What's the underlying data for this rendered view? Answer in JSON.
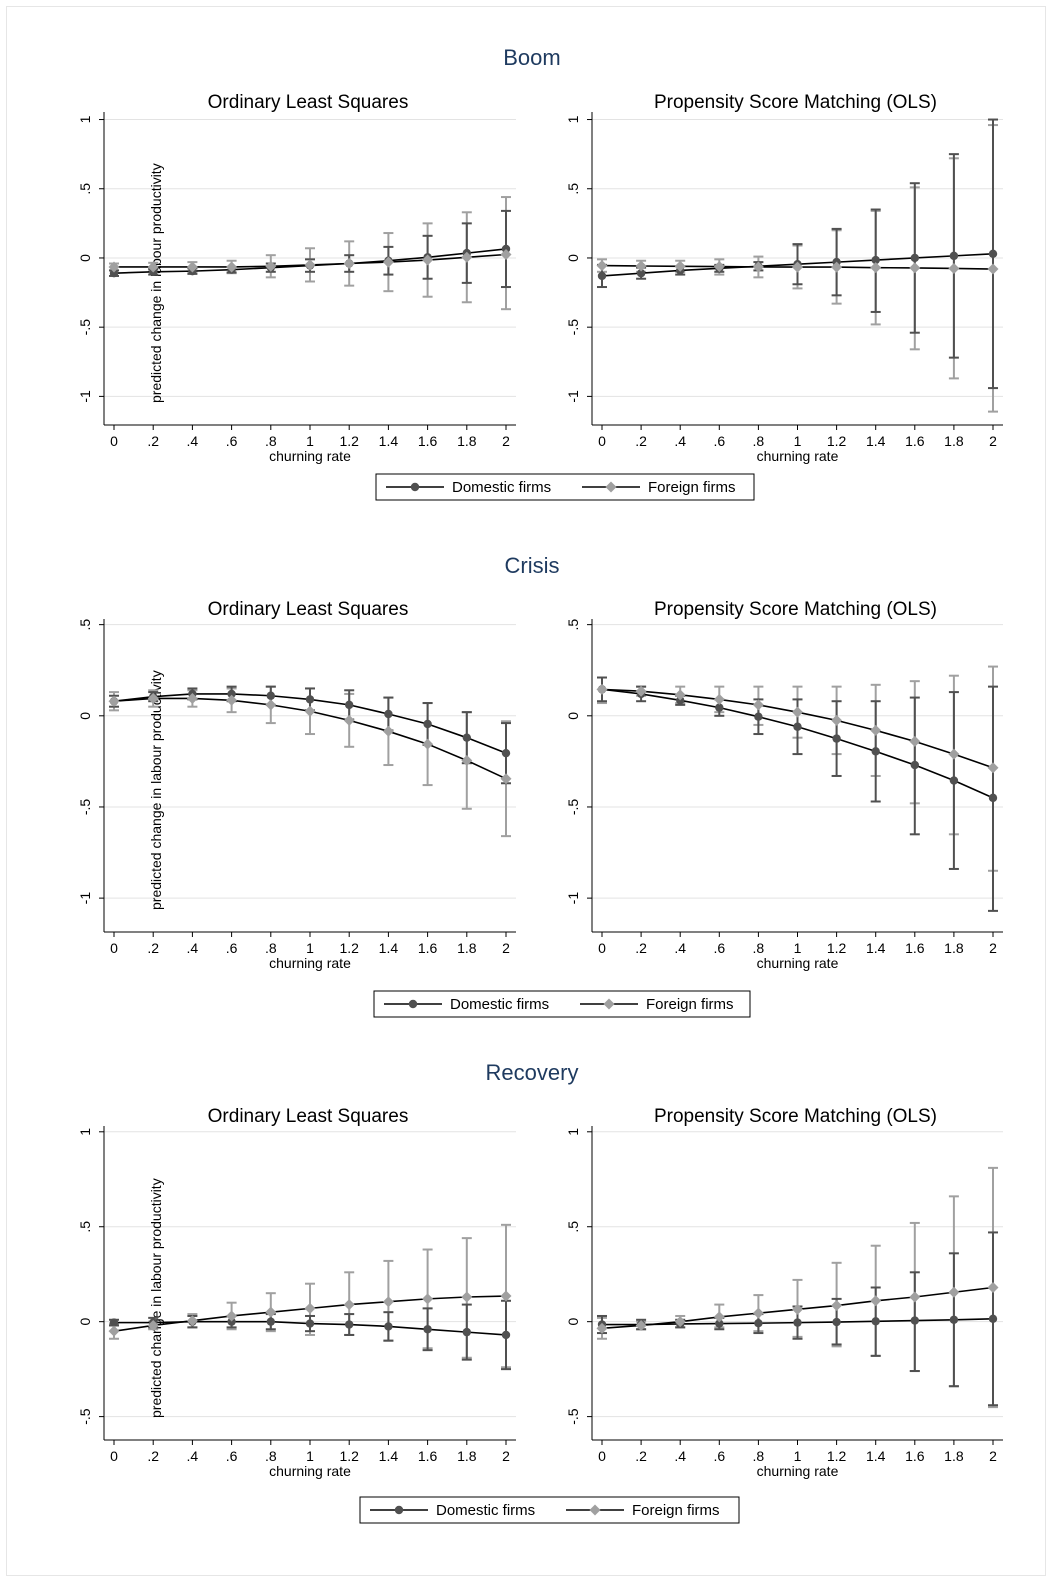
{
  "chart_data": [
    {
      "type": "line",
      "panel": "Boom",
      "title": "Ordinary Least Squares",
      "xlabel": "churning rate",
      "ylabel": "predicted change in labour productivity",
      "x": [
        0,
        0.2,
        0.4,
        0.6,
        0.8,
        1,
        1.2,
        1.4,
        1.6,
        1.8,
        2
      ],
      "xtick_labels": [
        "0",
        ".2",
        ".4",
        ".6",
        ".8",
        "1",
        "1.2",
        "1.4",
        "1.6",
        "1.8",
        "2"
      ],
      "ylim": [
        -1.12,
        1.04
      ],
      "yticks": [
        -1,
        -0.5,
        0,
        0.5,
        1
      ],
      "ytick_labels": [
        "-1",
        "-.5",
        "0",
        ".5",
        "1"
      ],
      "series": [
        {
          "name": "Domestic firms",
          "color": "#505050",
          "marker": "circle",
          "values": [
            -0.11,
            -0.1,
            -0.095,
            -0.085,
            -0.07,
            -0.055,
            -0.04,
            -0.02,
            0.005,
            0.035,
            0.065
          ],
          "ci_low": [
            -0.13,
            -0.12,
            -0.115,
            -0.105,
            -0.1,
            -0.1,
            -0.1,
            -0.12,
            -0.15,
            -0.18,
            -0.21
          ],
          "ci_high": [
            -0.09,
            -0.08,
            -0.075,
            -0.065,
            -0.04,
            -0.01,
            0.02,
            0.08,
            0.16,
            0.25,
            0.34
          ]
        },
        {
          "name": "Foreign firms",
          "color": "#a0a0a0",
          "marker": "diamond",
          "values": [
            -0.065,
            -0.065,
            -0.065,
            -0.065,
            -0.06,
            -0.05,
            -0.04,
            -0.03,
            -0.015,
            0.005,
            0.025
          ],
          "ci_low": [
            -0.09,
            -0.095,
            -0.1,
            -0.11,
            -0.14,
            -0.17,
            -0.2,
            -0.24,
            -0.28,
            -0.32,
            -0.37
          ],
          "ci_high": [
            -0.04,
            -0.035,
            -0.03,
            -0.02,
            0.02,
            0.07,
            0.12,
            0.18,
            0.25,
            0.33,
            0.44
          ]
        }
      ],
      "legend": "bottom"
    },
    {
      "type": "line",
      "panel": "Boom",
      "title": "Propensity Score Matching (OLS)",
      "xlabel": "churning rate",
      "ylabel": "",
      "x": [
        0,
        0.2,
        0.4,
        0.6,
        0.8,
        1,
        1.2,
        1.4,
        1.6,
        1.8,
        2
      ],
      "xtick_labels": [
        "0",
        ".2",
        ".4",
        ".6",
        ".8",
        "1",
        "1.2",
        "1.4",
        "1.6",
        "1.8",
        "2"
      ],
      "ylim": [
        -1.12,
        1.04
      ],
      "yticks": [
        -1,
        -0.5,
        0,
        0.5,
        1
      ],
      "ytick_labels": [
        "-1",
        "-.5",
        "0",
        ".5",
        "1"
      ],
      "series": [
        {
          "name": "Domestic firms",
          "color": "#505050",
          "marker": "circle",
          "values": [
            -0.13,
            -0.11,
            -0.09,
            -0.075,
            -0.06,
            -0.045,
            -0.03,
            -0.015,
            0.0,
            0.015,
            0.03
          ],
          "ci_low": [
            -0.21,
            -0.15,
            -0.12,
            -0.1,
            -0.09,
            -0.19,
            -0.27,
            -0.39,
            -0.54,
            -0.72,
            -0.94
          ],
          "ci_high": [
            -0.05,
            -0.07,
            -0.06,
            -0.05,
            -0.03,
            0.1,
            0.21,
            0.35,
            0.54,
            0.75,
            1.0
          ]
        },
        {
          "name": "Foreign firms",
          "color": "#a0a0a0",
          "marker": "diamond",
          "values": [
            -0.055,
            -0.058,
            -0.06,
            -0.062,
            -0.065,
            -0.066,
            -0.066,
            -0.07,
            -0.072,
            -0.076,
            -0.08
          ],
          "ci_low": [
            -0.1,
            -0.1,
            -0.1,
            -0.12,
            -0.14,
            -0.22,
            -0.33,
            -0.48,
            -0.66,
            -0.87,
            -1.11
          ],
          "ci_high": [
            -0.01,
            -0.02,
            -0.02,
            -0.01,
            0.01,
            0.09,
            0.2,
            0.34,
            0.51,
            0.72,
            0.96
          ]
        }
      ],
      "legend": "bottom"
    },
    {
      "type": "line",
      "panel": "Crisis",
      "title": "Ordinary Least Squares",
      "xlabel": "churning rate",
      "ylabel": "predicted change in labour productivity",
      "x": [
        0,
        0.2,
        0.4,
        0.6,
        0.8,
        1,
        1.2,
        1.4,
        1.6,
        1.8,
        2
      ],
      "xtick_labels": [
        "0",
        ".2",
        ".4",
        ".6",
        ".8",
        "1",
        "1.2",
        "1.4",
        "1.6",
        "1.8",
        "2"
      ],
      "ylim": [
        -1.12,
        0.52
      ],
      "yticks": [
        -1,
        -0.5,
        0,
        0.5
      ],
      "ytick_labels": [
        "-1",
        "-.5",
        "0",
        ".5"
      ],
      "series": [
        {
          "name": "Domestic firms",
          "color": "#505050",
          "marker": "circle",
          "values": [
            0.08,
            0.105,
            0.12,
            0.12,
            0.11,
            0.09,
            0.06,
            0.01,
            -0.045,
            -0.12,
            -0.205
          ],
          "ci_low": [
            0.05,
            0.08,
            0.09,
            0.08,
            0.06,
            0.03,
            -0.02,
            -0.08,
            -0.16,
            -0.26,
            -0.37
          ],
          "ci_high": [
            0.11,
            0.13,
            0.15,
            0.16,
            0.16,
            0.15,
            0.14,
            0.1,
            0.07,
            0.02,
            -0.04
          ]
        },
        {
          "name": "Foreign firms",
          "color": "#a0a0a0",
          "marker": "diamond",
          "values": [
            0.08,
            0.095,
            0.095,
            0.085,
            0.06,
            0.025,
            -0.025,
            -0.085,
            -0.155,
            -0.245,
            -0.345
          ],
          "ci_low": [
            0.03,
            0.05,
            0.05,
            0.02,
            -0.04,
            -0.1,
            -0.17,
            -0.27,
            -0.38,
            -0.51,
            -0.66
          ],
          "ci_high": [
            0.13,
            0.14,
            0.14,
            0.15,
            0.16,
            0.15,
            0.12,
            0.1,
            0.07,
            0.02,
            -0.03
          ]
        }
      ],
      "legend": "bottom"
    },
    {
      "type": "line",
      "panel": "Crisis",
      "title": "Propensity Score Matching (OLS)",
      "xlabel": "churning rate",
      "ylabel": "",
      "x": [
        0,
        0.2,
        0.4,
        0.6,
        0.8,
        1,
        1.2,
        1.4,
        1.6,
        1.8,
        2
      ],
      "xtick_labels": [
        "0",
        ".2",
        ".4",
        ".6",
        ".8",
        "1",
        "1.2",
        "1.4",
        "1.6",
        "1.8",
        "2"
      ],
      "ylim": [
        -1.12,
        0.52
      ],
      "yticks": [
        -1,
        -0.5,
        0,
        0.5
      ],
      "ytick_labels": [
        "-1",
        "-.5",
        "0",
        ".5"
      ],
      "series": [
        {
          "name": "Domestic firms",
          "color": "#505050",
          "marker": "circle",
          "values": [
            0.145,
            0.12,
            0.085,
            0.045,
            -0.005,
            -0.06,
            -0.125,
            -0.195,
            -0.27,
            -0.355,
            -0.45
          ],
          "ci_low": [
            0.08,
            0.08,
            0.06,
            0.0,
            -0.1,
            -0.21,
            -0.33,
            -0.47,
            -0.65,
            -0.84,
            -1.07
          ],
          "ci_high": [
            0.21,
            0.16,
            0.11,
            0.09,
            0.09,
            0.09,
            0.08,
            0.08,
            0.1,
            0.13,
            0.16
          ]
        },
        {
          "name": "Foreign firms",
          "color": "#a0a0a0",
          "marker": "diamond",
          "values": [
            0.145,
            0.135,
            0.115,
            0.09,
            0.06,
            0.02,
            -0.025,
            -0.08,
            -0.14,
            -0.21,
            -0.285
          ],
          "ci_low": [
            0.07,
            0.11,
            0.07,
            0.02,
            -0.05,
            -0.12,
            -0.21,
            -0.33,
            -0.48,
            -0.65,
            -0.85
          ],
          "ci_high": [
            0.21,
            0.16,
            0.16,
            0.16,
            0.16,
            0.16,
            0.16,
            0.17,
            0.19,
            0.22,
            0.27
          ]
        }
      ],
      "legend": "bottom"
    },
    {
      "type": "line",
      "panel": "Recovery",
      "title": "Ordinary Least Squares",
      "xlabel": "churning rate",
      "ylabel": "predicted change in labour productivity",
      "x": [
        0,
        0.2,
        0.4,
        0.6,
        0.8,
        1,
        1.2,
        1.4,
        1.6,
        1.8,
        2
      ],
      "xtick_labels": [
        "0",
        ".2",
        ".4",
        ".6",
        ".8",
        "1",
        "1.2",
        "1.4",
        "1.6",
        "1.8",
        "2"
      ],
      "ylim": [
        -0.56,
        1.02
      ],
      "yticks": [
        -0.5,
        0,
        0.5,
        1
      ],
      "ytick_labels": [
        "-.5",
        "0",
        ".5",
        "1"
      ],
      "series": [
        {
          "name": "Domestic firms",
          "color": "#505050",
          "marker": "circle",
          "values": [
            -0.005,
            -0.005,
            0.0,
            0.0,
            0.0,
            -0.01,
            -0.015,
            -0.025,
            -0.04,
            -0.055,
            -0.07
          ],
          "ci_low": [
            -0.02,
            -0.03,
            -0.03,
            -0.03,
            -0.04,
            -0.05,
            -0.07,
            -0.1,
            -0.15,
            -0.2,
            -0.25
          ],
          "ci_high": [
            0.01,
            0.02,
            0.03,
            0.03,
            0.04,
            0.03,
            0.04,
            0.05,
            0.07,
            0.09,
            0.11
          ]
        },
        {
          "name": "Foreign firms",
          "color": "#a0a0a0",
          "marker": "diamond",
          "values": [
            -0.05,
            -0.02,
            0.005,
            0.03,
            0.05,
            0.07,
            0.09,
            0.105,
            0.12,
            0.13,
            0.135
          ],
          "ci_low": [
            -0.09,
            -0.04,
            -0.03,
            -0.04,
            -0.05,
            -0.07,
            -0.07,
            -0.1,
            -0.14,
            -0.19,
            -0.24
          ],
          "ci_high": [
            -0.01,
            0.0,
            0.04,
            0.1,
            0.15,
            0.2,
            0.26,
            0.32,
            0.38,
            0.44,
            0.51
          ]
        }
      ],
      "legend": "bottom"
    },
    {
      "type": "line",
      "panel": "Recovery",
      "title": "Propensity Score Matching (OLS)",
      "xlabel": "churning rate",
      "ylabel": "",
      "x": [
        0,
        0.2,
        0.4,
        0.6,
        0.8,
        1,
        1.2,
        1.4,
        1.6,
        1.8,
        2
      ],
      "xtick_labels": [
        "0",
        ".2",
        ".4",
        ".6",
        ".8",
        "1",
        "1.2",
        "1.4",
        "1.6",
        "1.8",
        "2"
      ],
      "ylim": [
        -0.56,
        1.02
      ],
      "yticks": [
        -0.5,
        0,
        0.5,
        1
      ],
      "ytick_labels": [
        "-.5",
        "0",
        ".5",
        "1"
      ],
      "series": [
        {
          "name": "Domestic firms",
          "color": "#505050",
          "marker": "circle",
          "values": [
            -0.015,
            -0.015,
            -0.012,
            -0.01,
            -0.008,
            -0.005,
            -0.002,
            0.002,
            0.006,
            0.01,
            0.015
          ],
          "ci_low": [
            -0.06,
            -0.04,
            -0.03,
            -0.04,
            -0.06,
            -0.09,
            -0.12,
            -0.18,
            -0.26,
            -0.34,
            -0.44
          ],
          "ci_high": [
            0.03,
            0.01,
            0.01,
            0.02,
            0.04,
            0.08,
            0.12,
            0.18,
            0.26,
            0.36,
            0.47
          ]
        },
        {
          "name": "Foreign firms",
          "color": "#a0a0a0",
          "marker": "diamond",
          "values": [
            -0.035,
            -0.02,
            0.0,
            0.025,
            0.045,
            0.065,
            0.085,
            0.11,
            0.13,
            0.155,
            0.18
          ],
          "ci_low": [
            -0.09,
            -0.04,
            -0.03,
            -0.03,
            -0.05,
            -0.08,
            -0.13,
            -0.18,
            -0.26,
            -0.34,
            -0.45
          ],
          "ci_high": [
            0.02,
            0.0,
            0.03,
            0.09,
            0.14,
            0.22,
            0.31,
            0.4,
            0.52,
            0.66,
            0.81
          ]
        }
      ],
      "legend": "bottom"
    }
  ],
  "panels": [
    {
      "title": "Boom",
      "legend": [
        "Domestic firms",
        "Foreign firms"
      ]
    },
    {
      "title": "Crisis",
      "legend": [
        "Domestic firms",
        "Foreign firms"
      ]
    },
    {
      "title": "Recovery",
      "legend": [
        "Domestic firms",
        "Foreign firms"
      ]
    }
  ],
  "colors": {
    "domestic": "#505050",
    "foreign": "#a0a0a0",
    "panel_title": "#1e3a5f",
    "grid": "#e3e3e3"
  }
}
